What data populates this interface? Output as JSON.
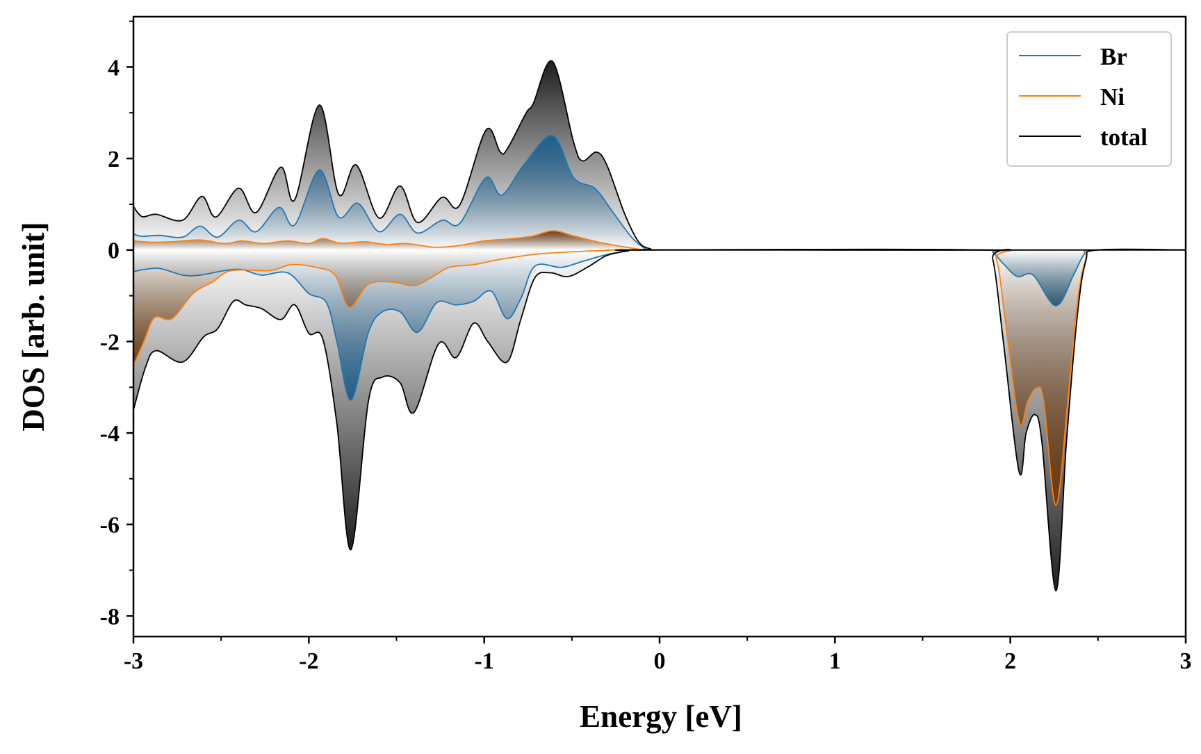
{
  "chart_data": {
    "type": "area",
    "xlabel": "Energy [eV]",
    "ylabel": "DOS [arb. unit]",
    "xlim": [
      -3,
      3
    ],
    "ylim": [
      -8.45,
      5.1
    ],
    "x_ticks": [
      -3,
      -2,
      -1,
      0,
      1,
      2,
      3
    ],
    "x_tick_labels": [
      "-3",
      "-2",
      "-1",
      "0",
      "1",
      "2",
      "3"
    ],
    "y_ticks": [
      4,
      2,
      0,
      -2,
      -4,
      -6,
      -8
    ],
    "y_tick_labels": [
      "4",
      "2",
      "0",
      "-2",
      "-4",
      "-6",
      "-8"
    ],
    "grid": false,
    "legend_position": "top-right",
    "shading": "vertical gradient fill under each curve (darker away from zero)",
    "series": [
      {
        "name": "Br",
        "color": "#1f77b4",
        "fill_color": "#1f5f8b",
        "up": [
          [
            -3,
            0.35
          ],
          [
            -2.95,
            0.3
          ],
          [
            -2.85,
            0.32
          ],
          [
            -2.72,
            0.28
          ],
          [
            -2.62,
            0.52
          ],
          [
            -2.52,
            0.28
          ],
          [
            -2.4,
            0.65
          ],
          [
            -2.3,
            0.4
          ],
          [
            -2.17,
            0.93
          ],
          [
            -2.08,
            0.55
          ],
          [
            -1.94,
            1.75
          ],
          [
            -1.83,
            0.72
          ],
          [
            -1.72,
            1.02
          ],
          [
            -1.6,
            0.4
          ],
          [
            -1.48,
            0.78
          ],
          [
            -1.38,
            0.37
          ],
          [
            -1.24,
            0.65
          ],
          [
            -1.14,
            0.58
          ],
          [
            -0.99,
            1.58
          ],
          [
            -0.9,
            1.2
          ],
          [
            -0.77,
            1.88
          ],
          [
            -0.61,
            2.5
          ],
          [
            -0.49,
            1.58
          ],
          [
            -0.37,
            1.35
          ],
          [
            -0.28,
            0.9
          ],
          [
            -0.16,
            0.28
          ],
          [
            -0.08,
            0.03
          ],
          [
            -0.02,
            0.0
          ]
        ],
        "down": [
          [
            -3,
            -0.47
          ],
          [
            -2.86,
            -0.4
          ],
          [
            -2.72,
            -0.55
          ],
          [
            -2.62,
            -0.55
          ],
          [
            -2.48,
            -0.45
          ],
          [
            -2.38,
            -0.43
          ],
          [
            -2.27,
            -0.55
          ],
          [
            -2.12,
            -0.5
          ],
          [
            -2.0,
            -0.95
          ],
          [
            -1.9,
            -1.15
          ],
          [
            -1.84,
            -2.0
          ],
          [
            -1.76,
            -3.28
          ],
          [
            -1.66,
            -1.8
          ],
          [
            -1.58,
            -1.35
          ],
          [
            -1.48,
            -1.35
          ],
          [
            -1.38,
            -1.8
          ],
          [
            -1.27,
            -1.15
          ],
          [
            -1.16,
            -1.2
          ],
          [
            -1.06,
            -1.12
          ],
          [
            -0.96,
            -0.9
          ],
          [
            -0.87,
            -1.5
          ],
          [
            -0.79,
            -1.05
          ],
          [
            -0.71,
            -0.35
          ],
          [
            -0.56,
            -0.38
          ],
          [
            -0.44,
            -0.25
          ],
          [
            -0.3,
            -0.1
          ],
          [
            -0.18,
            -0.02
          ],
          [
            -0.08,
            0.0
          ]
        ],
        "down_peak2": [
          [
            1.84,
            0.0
          ],
          [
            1.9,
            -0.05
          ],
          [
            1.96,
            -0.3
          ],
          [
            2.04,
            -0.58
          ],
          [
            2.13,
            -0.55
          ],
          [
            2.26,
            -1.22
          ],
          [
            2.36,
            -0.55
          ],
          [
            2.42,
            -0.1
          ],
          [
            2.48,
            0.0
          ]
        ]
      },
      {
        "name": "Ni",
        "color": "#ff7f0e",
        "fill_color": "#6b3a10",
        "up": [
          [
            -3,
            0.2
          ],
          [
            -2.9,
            0.17
          ],
          [
            -2.78,
            0.18
          ],
          [
            -2.62,
            0.22
          ],
          [
            -2.48,
            0.14
          ],
          [
            -2.38,
            0.2
          ],
          [
            -2.26,
            0.14
          ],
          [
            -2.12,
            0.2
          ],
          [
            -2.0,
            0.14
          ],
          [
            -1.92,
            0.25
          ],
          [
            -1.82,
            0.15
          ],
          [
            -1.68,
            0.18
          ],
          [
            -1.56,
            0.12
          ],
          [
            -1.44,
            0.14
          ],
          [
            -1.28,
            0.06
          ],
          [
            -1.14,
            0.1
          ],
          [
            -1.0,
            0.2
          ],
          [
            -0.86,
            0.24
          ],
          [
            -0.73,
            0.3
          ],
          [
            -0.61,
            0.42
          ],
          [
            -0.5,
            0.32
          ],
          [
            -0.36,
            0.18
          ],
          [
            -0.22,
            0.08
          ],
          [
            -0.1,
            0.01
          ],
          [
            0.0,
            0.0
          ]
        ],
        "down": [
          [
            -3,
            -2.52
          ],
          [
            -2.94,
            -2.0
          ],
          [
            -2.88,
            -1.48
          ],
          [
            -2.78,
            -1.5
          ],
          [
            -2.66,
            -0.95
          ],
          [
            -2.55,
            -0.7
          ],
          [
            -2.44,
            -0.45
          ],
          [
            -2.22,
            -0.45
          ],
          [
            -2.1,
            -0.32
          ],
          [
            -1.96,
            -0.38
          ],
          [
            -1.85,
            -0.55
          ],
          [
            -1.77,
            -1.25
          ],
          [
            -1.66,
            -0.75
          ],
          [
            -1.52,
            -0.7
          ],
          [
            -1.4,
            -0.78
          ],
          [
            -1.3,
            -0.6
          ],
          [
            -1.2,
            -0.38
          ],
          [
            -1.06,
            -0.32
          ],
          [
            -0.9,
            -0.2
          ],
          [
            -0.7,
            -0.09
          ],
          [
            -0.5,
            -0.04
          ],
          [
            -0.3,
            -0.01
          ],
          [
            -0.1,
            0.0
          ]
        ],
        "down_peak2": [
          [
            1.84,
            0.0
          ],
          [
            1.92,
            -0.2
          ],
          [
            1.97,
            -1.5
          ],
          [
            2.05,
            -3.76
          ],
          [
            2.1,
            -3.3
          ],
          [
            2.15,
            -3.02
          ],
          [
            2.19,
            -3.3
          ],
          [
            2.26,
            -5.58
          ],
          [
            2.33,
            -3.2
          ],
          [
            2.38,
            -1.2
          ],
          [
            2.43,
            -0.2
          ],
          [
            2.48,
            0.0
          ]
        ]
      },
      {
        "name": "total",
        "color": "#000000",
        "fill_color": "#1a1a1a",
        "up": [
          [
            -3,
            0.95
          ],
          [
            -2.95,
            0.73
          ],
          [
            -2.87,
            0.78
          ],
          [
            -2.72,
            0.65
          ],
          [
            -2.61,
            1.17
          ],
          [
            -2.53,
            0.72
          ],
          [
            -2.4,
            1.35
          ],
          [
            -2.3,
            0.82
          ],
          [
            -2.16,
            1.81
          ],
          [
            -2.08,
            1.1
          ],
          [
            -1.94,
            3.17
          ],
          [
            -1.83,
            1.22
          ],
          [
            -1.73,
            1.86
          ],
          [
            -1.6,
            0.7
          ],
          [
            -1.48,
            1.4
          ],
          [
            -1.38,
            0.6
          ],
          [
            -1.24,
            1.15
          ],
          [
            -1.14,
            0.98
          ],
          [
            -0.99,
            2.62
          ],
          [
            -0.91,
            2.15
          ],
          [
            -0.87,
            2.2
          ],
          [
            -0.76,
            3.0
          ],
          [
            -0.72,
            3.2
          ],
          [
            -0.61,
            4.12
          ],
          [
            -0.49,
            2.35
          ],
          [
            -0.44,
            1.95
          ],
          [
            -0.36,
            2.14
          ],
          [
            -0.3,
            1.85
          ],
          [
            -0.2,
            0.8
          ],
          [
            -0.12,
            0.18
          ],
          [
            -0.05,
            0.02
          ],
          [
            0.0,
            0.0
          ]
        ],
        "down": [
          [
            -3,
            -3.5
          ],
          [
            -2.93,
            -2.55
          ],
          [
            -2.87,
            -2.2
          ],
          [
            -2.72,
            -2.45
          ],
          [
            -2.6,
            -1.9
          ],
          [
            -2.52,
            -1.72
          ],
          [
            -2.43,
            -1.12
          ],
          [
            -2.36,
            -1.2
          ],
          [
            -2.27,
            -1.28
          ],
          [
            -2.16,
            -1.52
          ],
          [
            -2.08,
            -1.2
          ],
          [
            -2.0,
            -1.82
          ],
          [
            -1.92,
            -1.95
          ],
          [
            -1.84,
            -3.8
          ],
          [
            -1.76,
            -6.55
          ],
          [
            -1.66,
            -3.3
          ],
          [
            -1.58,
            -2.78
          ],
          [
            -1.48,
            -2.9
          ],
          [
            -1.4,
            -3.55
          ],
          [
            -1.26,
            -2.05
          ],
          [
            -1.16,
            -2.35
          ],
          [
            -1.06,
            -1.6
          ],
          [
            -0.98,
            -2.0
          ],
          [
            -0.87,
            -2.45
          ],
          [
            -0.79,
            -1.5
          ],
          [
            -0.71,
            -0.6
          ],
          [
            -0.62,
            -0.5
          ],
          [
            -0.52,
            -0.58
          ],
          [
            -0.4,
            -0.35
          ],
          [
            -0.3,
            -0.12
          ],
          [
            -0.18,
            -0.02
          ],
          [
            -0.08,
            0.0
          ]
        ],
        "down_peak2": [
          [
            1.84,
            0.0
          ],
          [
            1.9,
            -0.2
          ],
          [
            1.96,
            -2.0
          ],
          [
            2.05,
            -4.85
          ],
          [
            2.09,
            -4.0
          ],
          [
            2.14,
            -3.6
          ],
          [
            2.18,
            -4.2
          ],
          [
            2.26,
            -7.45
          ],
          [
            2.32,
            -4.2
          ],
          [
            2.38,
            -1.5
          ],
          [
            2.43,
            -0.25
          ],
          [
            2.5,
            0.0
          ]
        ]
      }
    ]
  }
}
